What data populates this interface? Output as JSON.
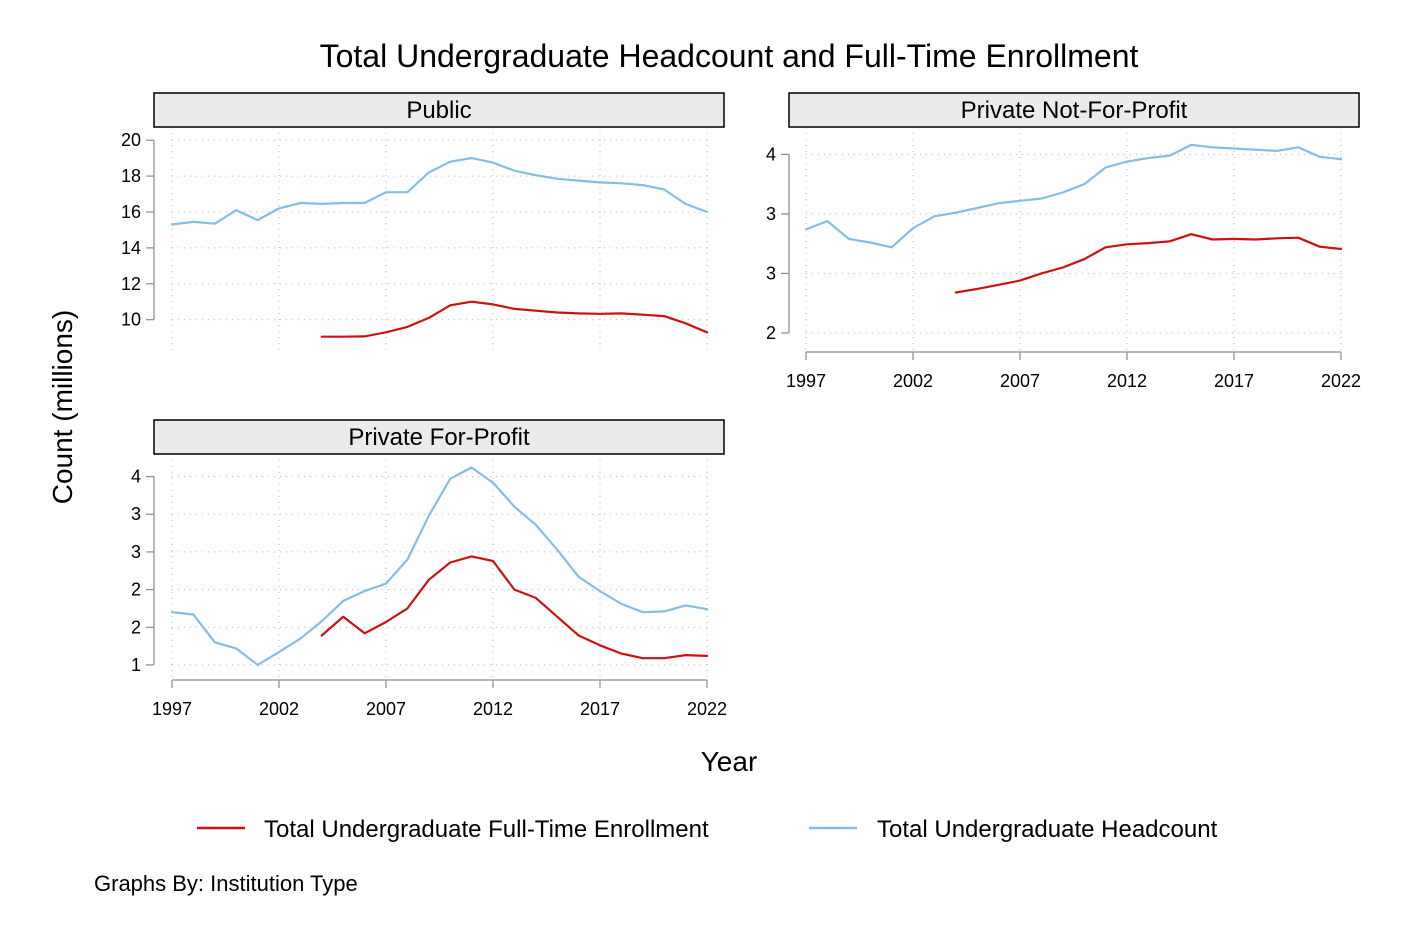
{
  "chart_data": {
    "type": "line",
    "title": "Total Undergraduate Headcount and Full-Time Enrollment",
    "xlabel": "Year",
    "ylabel": "Count (millions)",
    "note": "Graphs By: Institution Type",
    "legend_position": "bottom",
    "grid": true,
    "series_styles": [
      {
        "name": "Total Undergraduate Full-Time Enrollment",
        "color": "#cc1111"
      },
      {
        "name": "Total Undergraduate Headcount",
        "color": "#85bde3"
      }
    ],
    "x_ticks": [
      "1997",
      "2002",
      "2007",
      "2012",
      "2017",
      "2022"
    ],
    "xlim": [
      1997,
      2022
    ],
    "panels": [
      {
        "name": "Public",
        "y_ticks": [
          {
            "value": 10,
            "label": "10"
          },
          {
            "value": 12,
            "label": "12"
          },
          {
            "value": 14,
            "label": "14"
          },
          {
            "value": 16,
            "label": "16"
          },
          {
            "value": 18,
            "label": "18"
          },
          {
            "value": 20,
            "label": "20"
          }
        ],
        "ylim": [
          8.2,
          20.4
        ],
        "show_x_axis": false,
        "series": [
          {
            "name": "Total Undergraduate Headcount",
            "x": [
              1997,
              1998,
              1999,
              2000,
              2001,
              2002,
              2003,
              2004,
              2005,
              2006,
              2007,
              2008,
              2009,
              2010,
              2011,
              2012,
              2013,
              2014,
              2015,
              2016,
              2017,
              2018,
              2019,
              2020,
              2021,
              2022
            ],
            "y": [
              15.3,
              15.45,
              15.35,
              16.1,
              15.55,
              16.2,
              16.5,
              16.45,
              16.5,
              16.5,
              17.1,
              17.1,
              18.2,
              18.8,
              19.0,
              18.75,
              18.3,
              18.05,
              17.85,
              17.75,
              17.65,
              17.6,
              17.5,
              17.25,
              16.45,
              16.0
            ]
          },
          {
            "name": "Total Undergraduate Full-Time Enrollment",
            "x": [
              2004,
              2005,
              2006,
              2007,
              2008,
              2009,
              2010,
              2011,
              2012,
              2013,
              2014,
              2015,
              2016,
              2017,
              2018,
              2019,
              2020,
              2021,
              2022
            ],
            "y": [
              9.05,
              9.05,
              9.07,
              9.3,
              9.6,
              10.1,
              10.8,
              11.0,
              10.85,
              10.6,
              10.5,
              10.4,
              10.35,
              10.33,
              10.35,
              10.28,
              10.2,
              9.8,
              9.3
            ]
          }
        ]
      },
      {
        "name": "Private Not-For-Profit",
        "y_ticks": [
          {
            "value": 2.0,
            "label": "2"
          },
          {
            "value": 2.5,
            "label": "3"
          },
          {
            "value": 3.0,
            "label": "3"
          },
          {
            "value": 3.5,
            "label": "4"
          }
        ],
        "ylim": [
          1.84,
          3.68
        ],
        "show_x_axis": true,
        "series": [
          {
            "name": "Total Undergraduate Headcount",
            "x": [
              1997,
              1998,
              1999,
              2000,
              2001,
              2002,
              2003,
              2004,
              2005,
              2006,
              2007,
              2008,
              2009,
              2010,
              2011,
              2012,
              2013,
              2014,
              2015,
              2016,
              2017,
              2018,
              2019,
              2020,
              2021,
              2022
            ],
            "y": [
              2.87,
              2.94,
              2.79,
              2.76,
              2.72,
              2.88,
              2.98,
              3.01,
              3.05,
              3.09,
              3.11,
              3.13,
              3.18,
              3.25,
              3.39,
              3.44,
              3.47,
              3.49,
              3.58,
              3.56,
              3.55,
              3.54,
              3.53,
              3.56,
              3.48,
              3.46
            ]
          },
          {
            "name": "Total Undergraduate Full-Time Enrollment",
            "x": [
              2004,
              2005,
              2006,
              2007,
              2008,
              2009,
              2010,
              2011,
              2012,
              2013,
              2014,
              2015,
              2016,
              2017,
              2018,
              2019,
              2020,
              2021,
              2022
            ],
            "y": [
              2.34,
              2.37,
              2.405,
              2.44,
              2.5,
              2.55,
              2.62,
              2.72,
              2.745,
              2.755,
              2.77,
              2.83,
              2.785,
              2.79,
              2.785,
              2.795,
              2.8,
              2.725,
              2.705
            ]
          }
        ]
      },
      {
        "name": "Private For-Profit",
        "y_ticks": [
          {
            "value": 1.0,
            "label": "1"
          },
          {
            "value": 1.5,
            "label": "2"
          },
          {
            "value": 2.0,
            "label": "2"
          },
          {
            "value": 2.5,
            "label": "3"
          },
          {
            "value": 3.0,
            "label": "3"
          },
          {
            "value": 3.5,
            "label": "4"
          }
        ],
        "ylim": [
          0.8,
          3.72
        ],
        "show_x_axis": true,
        "series": [
          {
            "name": "Total Undergraduate Headcount",
            "x": [
              1997,
              1998,
              1999,
              2000,
              2001,
              2002,
              2003,
              2004,
              2005,
              2006,
              2007,
              2008,
              2009,
              2010,
              2011,
              2012,
              2013,
              2014,
              2015,
              2016,
              2017,
              2018,
              2019,
              2020,
              2021,
              2022
            ],
            "y": [
              1.7,
              1.67,
              1.3,
              1.22,
              1.0,
              1.17,
              1.35,
              1.58,
              1.85,
              1.98,
              2.08,
              2.4,
              2.98,
              3.47,
              3.62,
              3.42,
              3.1,
              2.86,
              2.53,
              2.17,
              1.98,
              1.81,
              1.7,
              1.71,
              1.79,
              1.74
            ]
          },
          {
            "name": "Total Undergraduate Full-Time Enrollment",
            "x": [
              2004,
              2005,
              2006,
              2007,
              2008,
              2009,
              2010,
              2011,
              2012,
              2013,
              2014,
              2015,
              2016,
              2017,
              2018,
              2019,
              2020,
              2021,
              2022
            ],
            "y": [
              1.39,
              1.64,
              1.42,
              1.57,
              1.75,
              2.13,
              2.36,
              2.44,
              2.38,
              2.0,
              1.89,
              1.64,
              1.39,
              1.26,
              1.15,
              1.09,
              1.09,
              1.13,
              1.12
            ]
          }
        ]
      }
    ]
  }
}
